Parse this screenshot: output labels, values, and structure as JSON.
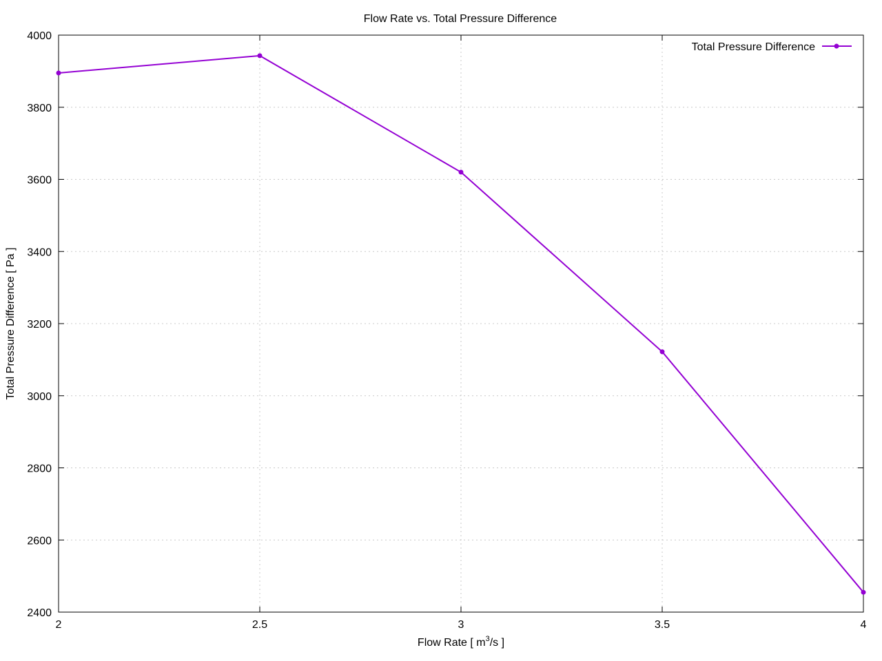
{
  "chart_data": {
    "type": "line",
    "title": "Flow Rate vs. Total Pressure Difference",
    "xlabel": "Flow Rate [ m",
    "xlabel_sup": "3",
    "xlabel_suffix": "/s ]",
    "ylabel": "Total Pressure Difference [ Pa ]",
    "xlim": [
      2,
      4
    ],
    "ylim": [
      2400,
      4000
    ],
    "xticks": [
      "2",
      "2.5",
      "3",
      "3.5",
      "4"
    ],
    "yticks": [
      "2400",
      "2600",
      "2800",
      "3000",
      "3200",
      "3400",
      "3600",
      "3800",
      "4000"
    ],
    "grid": true,
    "legend_position": "top-right",
    "series": [
      {
        "name": "Total Pressure Difference",
        "color": "#9400d3",
        "x": [
          2,
          2.5,
          3,
          3.5,
          4
        ],
        "y": [
          3895,
          3943,
          3620,
          3122,
          2455
        ]
      }
    ]
  }
}
